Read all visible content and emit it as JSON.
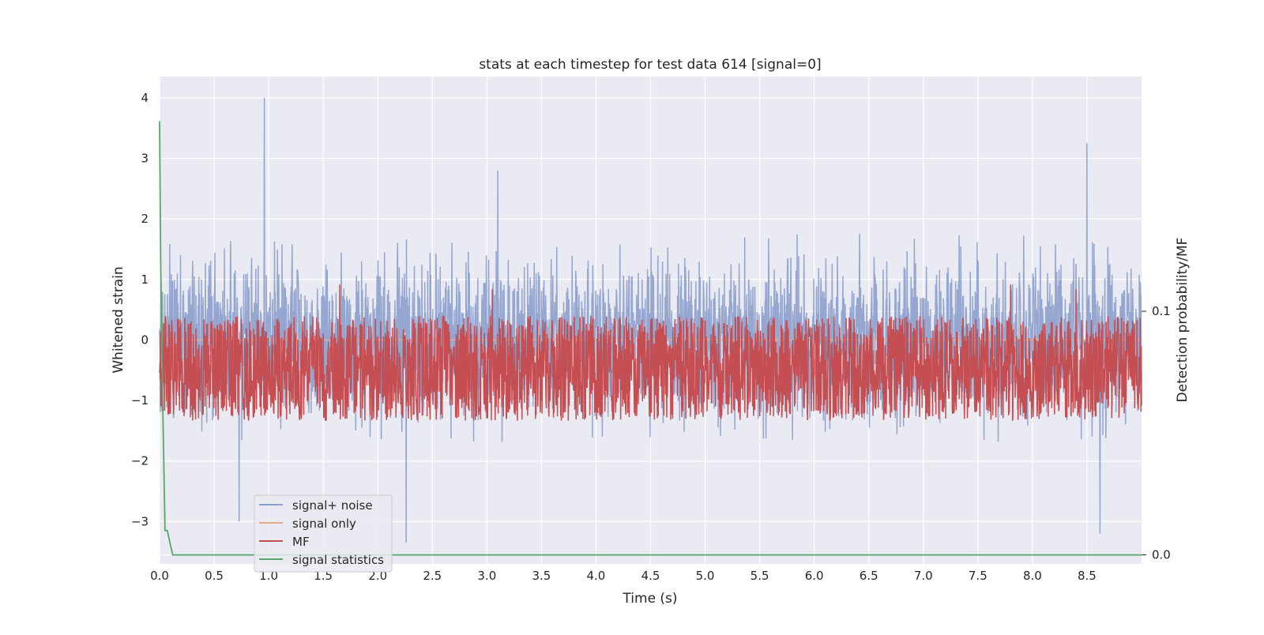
{
  "chart_data": {
    "type": "line",
    "title": "stats at each timestep for test data 614 [signal=0]",
    "xlabel": "Time (s)",
    "ylabel": "Whitened strain",
    "y2label": "Detection probability/MF",
    "xlim": [
      0.0,
      9.0
    ],
    "ylim": [
      -3.7,
      4.35
    ],
    "y2lim": [
      -0.0037,
      0.1963
    ],
    "xticks": [
      "0.0",
      "0.5",
      "1.0",
      "1.5",
      "2.0",
      "2.5",
      "3.0",
      "3.5",
      "4.0",
      "4.5",
      "5.0",
      "5.5",
      "6.0",
      "6.5",
      "7.0",
      "7.5",
      "8.0",
      "8.5"
    ],
    "yticks": [
      "4",
      "3",
      "2",
      "1",
      "0",
      "−1",
      "−2",
      "−3"
    ],
    "y2ticks": [
      "0.1",
      "0.0"
    ],
    "grid": true,
    "legend_position": "lower-left",
    "series": [
      {
        "name": "signal+ noise",
        "color": "#8c9fcc",
        "kind": "noise",
        "x_range": [
          0.0,
          9.0
        ],
        "y_baseline": 0.0,
        "y_typical_range": [
          -1.7,
          1.8
        ],
        "peaks": [
          {
            "x": 0.96,
            "y": 4.0
          },
          {
            "x": 8.5,
            "y": 3.25
          },
          {
            "x": 2.26,
            "y": -3.35
          },
          {
            "x": 8.62,
            "y": -3.2
          },
          {
            "x": 0.73,
            "y": -3.0
          },
          {
            "x": 3.1,
            "y": 2.8
          }
        ]
      },
      {
        "name": "signal only",
        "color": "#e8a98a",
        "kind": "constant",
        "x_range": [
          0.0,
          9.0
        ],
        "y": 0.0
      },
      {
        "name": "MF",
        "color": "#c44e52",
        "kind": "band",
        "axis": "right",
        "x_range": [
          0.0,
          9.0
        ],
        "y2_typical_range": [
          0.055,
          0.098
        ],
        "peaks": [
          {
            "x": 1.65,
            "y2": 0.111
          },
          {
            "x": 3.05,
            "y2": 0.109
          },
          {
            "x": 7.8,
            "y2": 0.111
          },
          {
            "x": 8.4,
            "y2": 0.109
          }
        ]
      },
      {
        "name": "signal statistics",
        "color": "#55a868",
        "kind": "line",
        "axis": "right",
        "x": [
          0.0,
          0.01,
          0.03,
          0.05,
          0.07,
          0.12,
          8.0,
          9.0
        ],
        "y2": [
          0.178,
          0.12,
          0.06,
          0.01,
          0.01,
          0.0,
          0.0,
          0.0
        ]
      }
    ]
  }
}
